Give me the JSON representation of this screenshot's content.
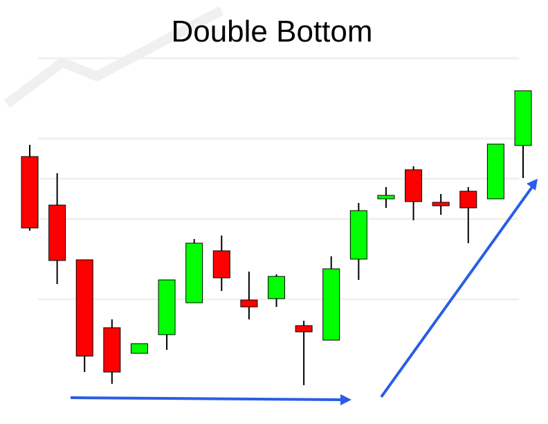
{
  "chart_data": {
    "type": "candlestick",
    "title": "Double Bottom",
    "ylim": [
      0,
      600
    ],
    "up_color": "#00ff00",
    "down_color": "#ff0000",
    "series": [
      {
        "open": 374,
        "high": 391,
        "low": 267,
        "close": 271
      },
      {
        "open": 304,
        "high": 350,
        "low": 190,
        "close": 224
      },
      {
        "open": 225,
        "high": 225,
        "low": 63,
        "close": 86
      },
      {
        "open": 127,
        "high": 139,
        "low": 46,
        "close": 63
      },
      {
        "open": 90,
        "high": 104,
        "low": 90,
        "close": 104
      },
      {
        "open": 117,
        "high": 196,
        "low": 95,
        "close": 196
      },
      {
        "open": 163,
        "high": 255,
        "low": 163,
        "close": 249
      },
      {
        "open": 238,
        "high": 260,
        "low": 180,
        "close": 199
      },
      {
        "open": 167,
        "high": 208,
        "low": 139,
        "close": 157
      },
      {
        "open": 169,
        "high": 204,
        "low": 157,
        "close": 201
      },
      {
        "open": 130,
        "high": 137,
        "low": 44,
        "close": 121
      },
      {
        "open": 109,
        "high": 230,
        "low": 109,
        "close": 212
      },
      {
        "open": 226,
        "high": 307,
        "low": 196,
        "close": 296
      },
      {
        "open": 313,
        "high": 330,
        "low": 300,
        "close": 318
      },
      {
        "open": 355,
        "high": 360,
        "low": 282,
        "close": 309
      },
      {
        "open": 308,
        "high": 320,
        "low": 290,
        "close": 303
      },
      {
        "open": 324,
        "high": 330,
        "low": 249,
        "close": 300
      },
      {
        "open": 313,
        "high": 392,
        "low": 313,
        "close": 392
      },
      {
        "open": 390,
        "high": 469,
        "low": 343,
        "close": 469
      }
    ]
  }
}
